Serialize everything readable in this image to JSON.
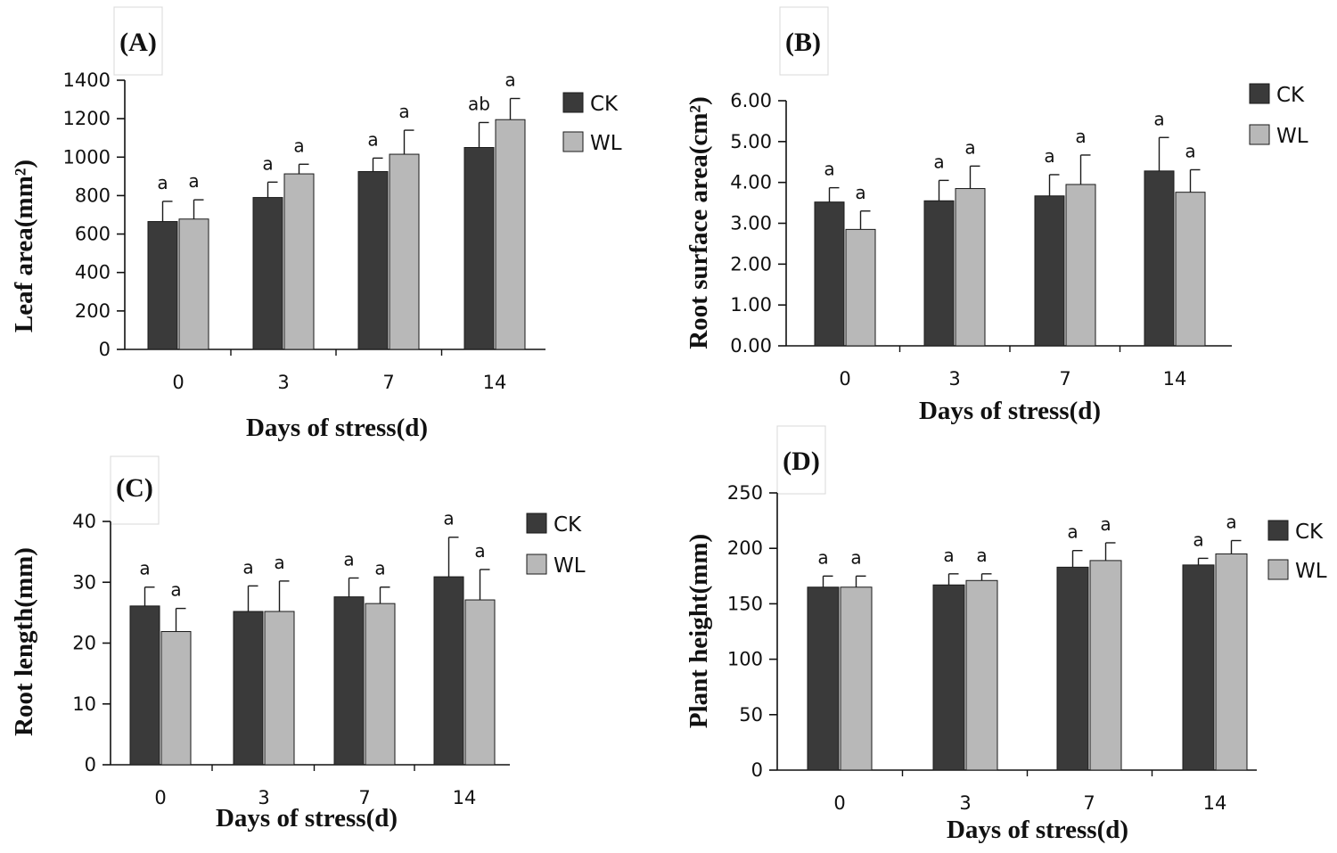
{
  "colors": {
    "ck": "#3a3a3a",
    "wl": "#b8b8b8",
    "axis": "#111111",
    "label_box": "#d8d8d8"
  },
  "chart_data": [
    {
      "id": "A",
      "type": "bar",
      "panel_label": "(A)",
      "title": "",
      "xlabel": "Days of stress(d)",
      "ylabel": "Leaf area(mm²)",
      "categories": [
        "0",
        "3",
        "7",
        "14"
      ],
      "ylim": [
        0,
        1400
      ],
      "yticks": [
        "0",
        "200",
        "400",
        "600",
        "800",
        "1000",
        "1200",
        "1400"
      ],
      "series": [
        {
          "name": "CK",
          "values": [
            665,
            790,
            925,
            1050
          ],
          "errors": [
            105,
            80,
            70,
            130
          ],
          "letters": [
            "a",
            "a",
            "a",
            "ab"
          ]
        },
        {
          "name": "WL",
          "values": [
            678,
            913,
            1015,
            1195
          ],
          "errors": [
            100,
            50,
            125,
            110
          ],
          "letters": [
            "a",
            "a",
            "a",
            "a"
          ]
        }
      ]
    },
    {
      "id": "B",
      "type": "bar",
      "panel_label": "(B)",
      "title": "",
      "xlabel": "Days of stress(d)",
      "ylabel": "Root surface area(cm²)",
      "categories": [
        "0",
        "3",
        "7",
        "14"
      ],
      "ylim": [
        0,
        6
      ],
      "yticks": [
        "0.00",
        "1.00",
        "2.00",
        "3.00",
        "4.00",
        "5.00",
        "6.00"
      ],
      "series": [
        {
          "name": "CK",
          "values": [
            3.52,
            3.55,
            3.67,
            4.28
          ],
          "errors": [
            0.35,
            0.5,
            0.52,
            0.82
          ],
          "letters": [
            "a",
            "a",
            "a",
            "a"
          ]
        },
        {
          "name": "WL",
          "values": [
            2.85,
            3.85,
            3.95,
            3.76
          ],
          "errors": [
            0.45,
            0.55,
            0.72,
            0.55
          ],
          "letters": [
            "a",
            "a",
            "a",
            "a"
          ]
        }
      ]
    },
    {
      "id": "C",
      "type": "bar",
      "panel_label": "(C)",
      "title": "",
      "xlabel": "Days of stress(d)",
      "ylabel": "Root length(mm)",
      "categories": [
        "0",
        "3",
        "7",
        "14"
      ],
      "ylim": [
        0,
        40
      ],
      "yticks": [
        "0",
        "10",
        "20",
        "30",
        "40"
      ],
      "series": [
        {
          "name": "CK",
          "values": [
            26.1,
            25.2,
            27.6,
            30.9
          ],
          "errors": [
            3.1,
            4.2,
            3.1,
            6.5
          ],
          "letters": [
            "a",
            "a",
            "a",
            "a"
          ]
        },
        {
          "name": "WL",
          "values": [
            21.9,
            25.2,
            26.5,
            27.1
          ],
          "errors": [
            3.8,
            5.0,
            2.7,
            5.0
          ],
          "letters": [
            "a",
            "a",
            "a",
            "a"
          ]
        }
      ]
    },
    {
      "id": "D",
      "type": "bar",
      "panel_label": "(D)",
      "title": "",
      "xlabel": "Days of stress(d)",
      "ylabel": "Plant height(mm)",
      "categories": [
        "0",
        "3",
        "7",
        "14"
      ],
      "ylim": [
        0,
        250
      ],
      "yticks": [
        "0",
        "50",
        "100",
        "150",
        "200",
        "250"
      ],
      "series": [
        {
          "name": "CK",
          "values": [
            165,
            167,
            183,
            185
          ],
          "errors": [
            10,
            10,
            15,
            6
          ],
          "letters": [
            "a",
            "a",
            "a",
            "a"
          ]
        },
        {
          "name": "WL",
          "values": [
            165,
            171,
            189,
            195
          ],
          "errors": [
            10,
            6,
            16,
            12
          ],
          "letters": [
            "a",
            "a",
            "a",
            "a"
          ]
        }
      ]
    }
  ]
}
